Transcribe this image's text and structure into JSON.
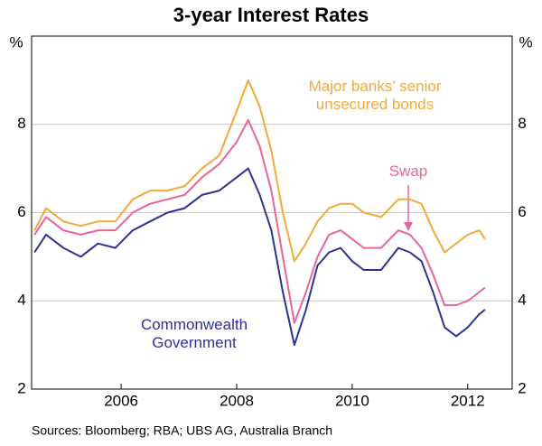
{
  "chart_data": {
    "type": "line",
    "title": "3-year Interest Rates",
    "y_label": "%",
    "y2_label": "%",
    "source": "Sources: Bloomberg; RBA; UBS AG, Australia Branch",
    "x": [
      2004.5,
      2004.7,
      2005.0,
      2005.3,
      2005.6,
      2005.9,
      2006.2,
      2006.5,
      2006.8,
      2007.1,
      2007.4,
      2007.7,
      2008.0,
      2008.2,
      2008.4,
      2008.6,
      2008.8,
      2009.0,
      2009.2,
      2009.4,
      2009.6,
      2009.8,
      2010.0,
      2010.2,
      2010.5,
      2010.8,
      2011.0,
      2011.2,
      2011.4,
      2011.6,
      2011.8,
      2012.0,
      2012.2,
      2012.3
    ],
    "series": [
      {
        "name": "Major banks’ senior unsecured bonds",
        "color": "#f2a93b",
        "values": [
          5.6,
          6.1,
          5.8,
          5.7,
          5.8,
          5.8,
          6.3,
          6.5,
          6.5,
          6.6,
          7.0,
          7.3,
          8.3,
          9.0,
          8.4,
          7.4,
          6.0,
          4.9,
          5.3,
          5.8,
          6.1,
          6.2,
          6.2,
          6.0,
          5.9,
          6.3,
          6.3,
          6.2,
          5.6,
          5.1,
          5.3,
          5.5,
          5.6,
          5.4
        ]
      },
      {
        "name": "Swap",
        "color": "#e8649e",
        "values": [
          5.5,
          5.9,
          5.6,
          5.5,
          5.6,
          5.6,
          6.0,
          6.2,
          6.3,
          6.4,
          6.8,
          7.1,
          7.6,
          8.1,
          7.5,
          6.5,
          5.0,
          3.5,
          4.2,
          5.0,
          5.5,
          5.6,
          5.4,
          5.2,
          5.2,
          5.6,
          5.5,
          5.2,
          4.6,
          3.9,
          3.9,
          4.0,
          4.2,
          4.3
        ]
      },
      {
        "name": "Commonwealth Government",
        "color": "#2e3192",
        "values": [
          5.1,
          5.5,
          5.2,
          5.0,
          5.3,
          5.2,
          5.6,
          5.8,
          6.0,
          6.1,
          6.4,
          6.5,
          6.8,
          7.0,
          6.4,
          5.6,
          4.2,
          3.0,
          3.8,
          4.8,
          5.1,
          5.2,
          4.9,
          4.7,
          4.7,
          5.2,
          5.1,
          4.9,
          4.2,
          3.4,
          3.2,
          3.4,
          3.7,
          3.8
        ]
      }
    ],
    "xlim": [
      2004.45,
      2012.77
    ],
    "xticks": [
      2006,
      2008,
      2010,
      2012
    ],
    "ylim": [
      2,
      10
    ],
    "yticks": [
      2,
      4,
      6,
      8
    ],
    "y2lim": [
      2,
      10
    ],
    "y2ticks": [
      2,
      4,
      6,
      8
    ],
    "grid": true
  }
}
